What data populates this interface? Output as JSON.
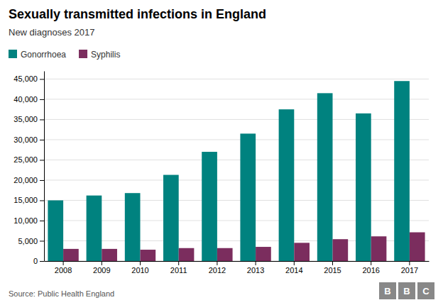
{
  "chart_data": {
    "type": "bar",
    "title": "Sexually transmitted infections in England",
    "subtitle": "New diagnoses 2017",
    "source": "Source: Public Health England",
    "annotations": [
      "B",
      "B",
      "C"
    ],
    "categories": [
      "2008",
      "2009",
      "2010",
      "2011",
      "2012",
      "2013",
      "2014",
      "2015",
      "2016",
      "2017"
    ],
    "series": [
      {
        "name": "Gonorrhoea",
        "color": "#00827F",
        "values": [
          15000,
          16200,
          16800,
          21300,
          27000,
          31500,
          37500,
          41500,
          36500,
          44500
        ]
      },
      {
        "name": "Syphilis",
        "color": "#7B2D5E",
        "values": [
          3000,
          3000,
          2800,
          3200,
          3200,
          3500,
          4500,
          5400,
          6100,
          7100
        ]
      }
    ],
    "ylim": [
      0,
      47000
    ],
    "yticks": [
      0,
      {
        "value": 5000,
        "label": "5,000"
      },
      {
        "value": 10000,
        "label": "10,000"
      },
      {
        "value": 15000,
        "label": "15,000"
      },
      {
        "value": 20000,
        "label": "20,000"
      },
      {
        "value": 25000,
        "label": "25,000"
      },
      {
        "value": 30000,
        "label": "30,000"
      },
      {
        "value": 35000,
        "label": "35,000"
      },
      {
        "value": 40000,
        "label": "40,000"
      },
      {
        "value": 45000,
        "label": "45,000"
      }
    ],
    "grid": true,
    "legend": "top-left"
  }
}
